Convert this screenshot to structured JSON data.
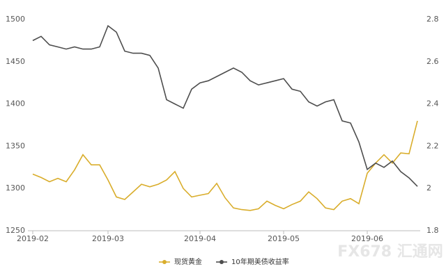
{
  "chart_data": {
    "type": "line",
    "categories": [
      "2019-02",
      null,
      null,
      null,
      null,
      null,
      null,
      null,
      null,
      "2019-03",
      null,
      null,
      null,
      null,
      null,
      null,
      null,
      null,
      null,
      null,
      "2019-04",
      null,
      null,
      null,
      null,
      null,
      null,
      null,
      null,
      null,
      "2019-05",
      null,
      null,
      null,
      null,
      null,
      null,
      null,
      null,
      null,
      "2019-06",
      null,
      null,
      null,
      null,
      null,
      null
    ],
    "series": [
      {
        "name": "现货黄金",
        "color": "#d9ad2b",
        "values": [
          1317,
          1313,
          1308,
          1312,
          1308,
          1322,
          1340,
          1328,
          1328,
          1310,
          1290,
          1287,
          1296,
          1305,
          1302,
          1305,
          1310,
          1320,
          1300,
          1290,
          1292,
          1294,
          1306,
          1289,
          1277,
          1275,
          1274,
          1276,
          1285,
          1280,
          1276,
          1281,
          1285,
          1296,
          1288,
          1277,
          1275,
          1285,
          1288,
          1282,
          1318,
          1330,
          1340,
          1330,
          1342,
          1341,
          1380
        ]
      },
      {
        "name": "10年期美债收益率",
        "color": "#4d4d4d",
        "axis": "y2",
        "values": [
          2.7,
          2.72,
          2.68,
          2.67,
          2.66,
          2.67,
          2.66,
          2.66,
          2.67,
          2.77,
          2.74,
          2.65,
          2.64,
          2.64,
          2.63,
          2.57,
          2.42,
          2.4,
          2.38,
          2.47,
          2.5,
          2.51,
          2.53,
          2.55,
          2.57,
          2.55,
          2.51,
          2.49,
          2.5,
          2.51,
          2.52,
          2.47,
          2.46,
          2.41,
          2.39,
          2.41,
          2.42,
          2.32,
          2.31,
          2.22,
          2.09,
          2.12,
          2.1,
          2.13,
          2.08,
          2.05,
          2.01
        ]
      }
    ],
    "ylim": [
      1250,
      1500
    ],
    "yticks": [
      1250,
      1300,
      1350,
      1400,
      1450,
      1500
    ],
    "y2lim": [
      1.8,
      2.8
    ],
    "y2ticks": [
      1.8,
      2,
      2.2,
      2.4,
      2.6,
      2.8
    ],
    "legend": "bottom",
    "watermark": "FX678 汇通网"
  }
}
